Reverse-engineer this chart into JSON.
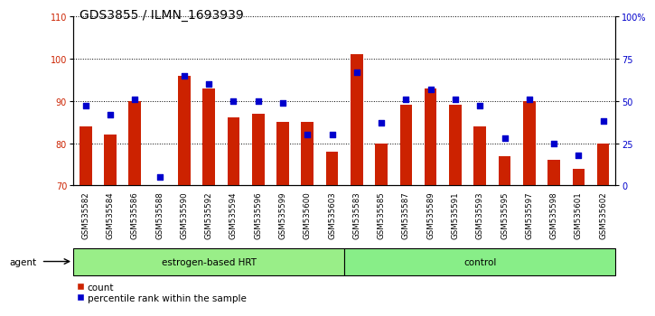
{
  "title": "GDS3855 / ILMN_1693939",
  "categories": [
    "GSM535582",
    "GSM535584",
    "GSM535586",
    "GSM535588",
    "GSM535590",
    "GSM535592",
    "GSM535594",
    "GSM535596",
    "GSM535599",
    "GSM535600",
    "GSM535603",
    "GSM535583",
    "GSM535585",
    "GSM535587",
    "GSM535589",
    "GSM535591",
    "GSM535593",
    "GSM535595",
    "GSM535597",
    "GSM535598",
    "GSM535601",
    "GSM535602"
  ],
  "count_values": [
    84,
    82,
    90,
    70,
    96,
    93,
    86,
    87,
    85,
    85,
    78,
    101,
    80,
    89,
    93,
    89,
    84,
    77,
    90,
    76,
    74,
    80
  ],
  "percentile_values": [
    47,
    42,
    51,
    5,
    65,
    60,
    50,
    50,
    49,
    30,
    30,
    67,
    37,
    51,
    57,
    51,
    47,
    28,
    51,
    25,
    18,
    38
  ],
  "group1_label": "estrogen-based HRT",
  "group2_label": "control",
  "group1_count": 11,
  "group2_count": 11,
  "ylim_left": [
    70,
    110
  ],
  "ylim_right": [
    0,
    100
  ],
  "yticks_left": [
    70,
    80,
    90,
    100,
    110
  ],
  "yticks_right": [
    0,
    25,
    50,
    75,
    100
  ],
  "yticklabels_right": [
    "0",
    "25",
    "50",
    "75",
    "100%"
  ],
  "bar_color": "#CC2200",
  "dot_color": "#0000CC",
  "bar_bottom": 70,
  "legend_count_label": "count",
  "legend_pct_label": "percentile rank within the sample",
  "group1_color": "#99EE88",
  "group2_color": "#88EE88",
  "agent_label": "agent",
  "title_fontsize": 10,
  "tick_fontsize": 7,
  "xlabel_fontsize": 6.2
}
